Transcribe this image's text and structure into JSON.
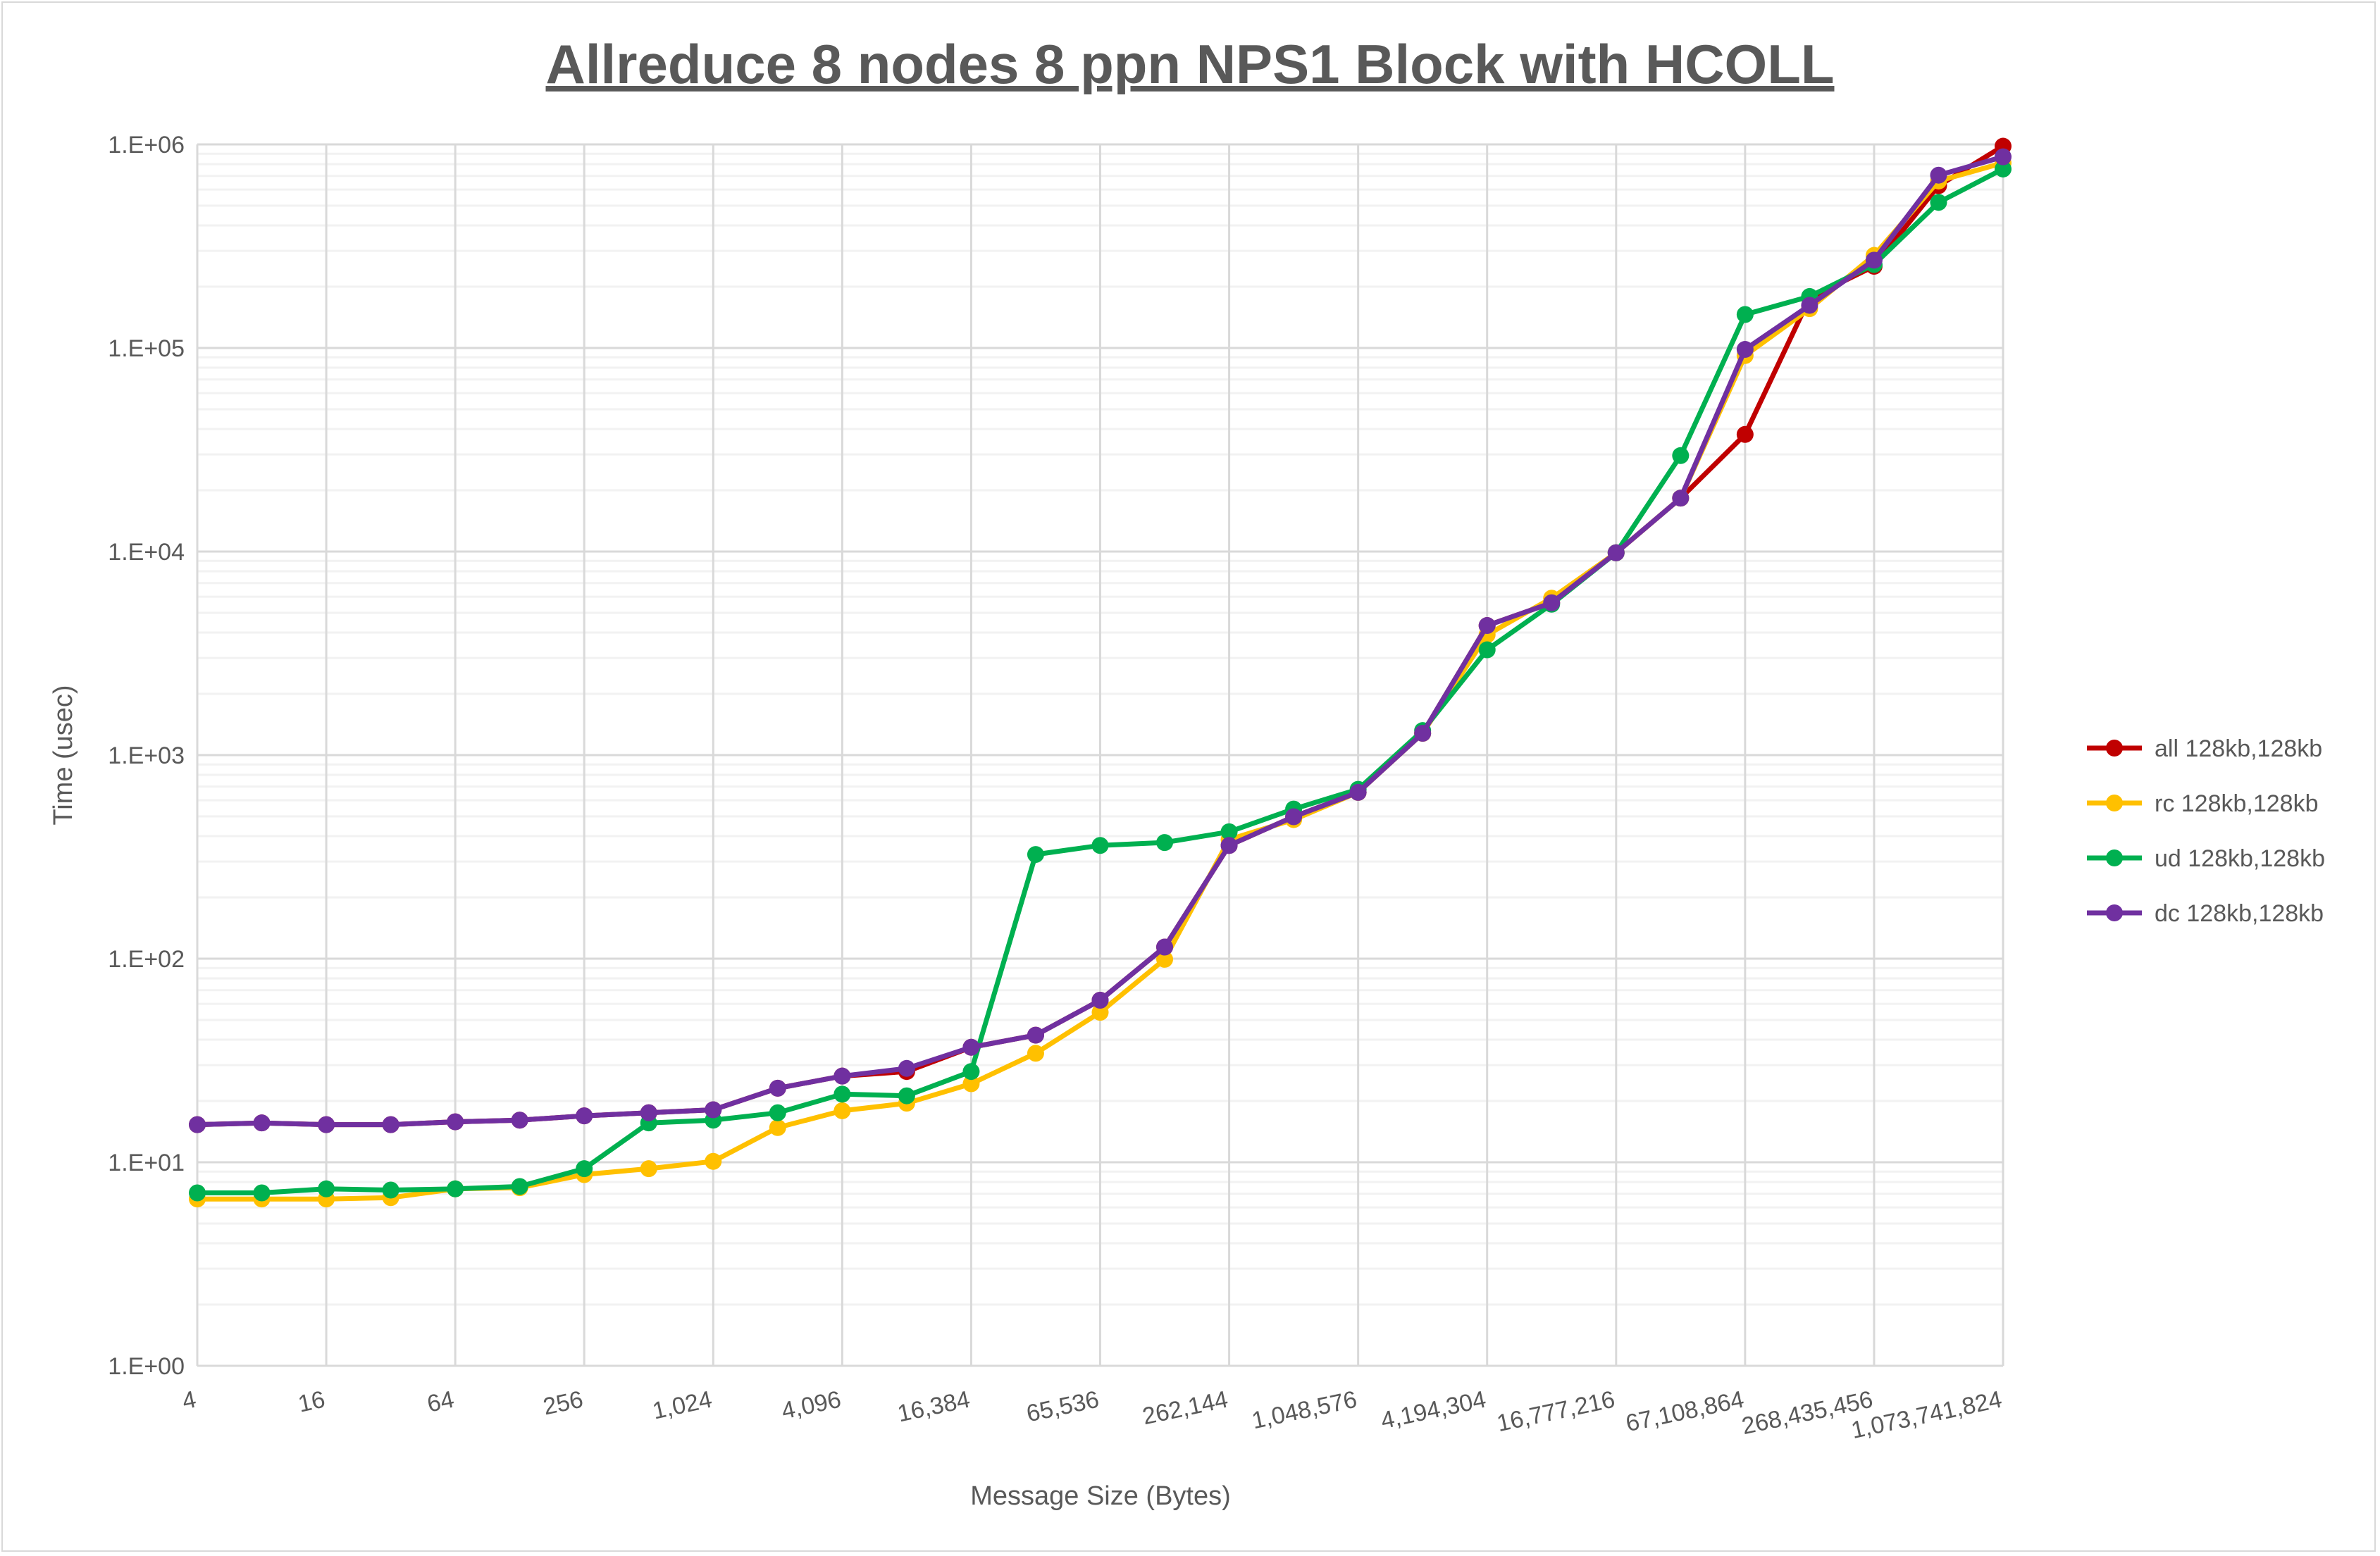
{
  "chart_data": {
    "type": "line",
    "title": "Allreduce 8 nodes 8 ppn NPS1 Block with HCOLL",
    "xlabel": "Message Size (Bytes)",
    "ylabel": "Time (usec)",
    "yscale": "log",
    "ylim": [
      1,
      1000000
    ],
    "y_ticks": [
      "1.E+00",
      "1.E+01",
      "1.E+02",
      "1.E+03",
      "1.E+04",
      "1.E+05",
      "1.E+06"
    ],
    "x": [
      4,
      8,
      16,
      32,
      64,
      128,
      256,
      512,
      1024,
      2048,
      4096,
      8192,
      16384,
      32768,
      65536,
      131072,
      262144,
      524288,
      1048576,
      2097152,
      4194304,
      8388608,
      16777216,
      33554432,
      67108864,
      134217728,
      268435456,
      536870912,
      1073741824
    ],
    "x_tick_labels": [
      "4",
      "16",
      "64",
      "256",
      "1,024",
      "4,096",
      "16,384",
      "65,536",
      "262,144",
      "1,048,576",
      "4,194,304",
      "16,777,216",
      "67,108,864",
      "268,435,456",
      "1,073,741,824"
    ],
    "grid": "major and minor",
    "legend_position": "right",
    "series": [
      {
        "name": "all 128kb,128kb",
        "color": "#C00000",
        "values": [
          15.3,
          15.6,
          15.3,
          15.3,
          15.8,
          16.1,
          16.9,
          17.5,
          18.1,
          23.1,
          26.5,
          27.9,
          36.7,
          42.1,
          62.5,
          114,
          360,
          498,
          656,
          1280,
          4330,
          5600,
          9860,
          18300,
          37600,
          176000,
          252000,
          627000,
          980000
        ]
      },
      {
        "name": "rc 128kb,128kb",
        "color": "#FFC000",
        "values": [
          6.6,
          6.6,
          6.6,
          6.7,
          7.4,
          7.5,
          8.7,
          9.3,
          10.1,
          14.8,
          17.9,
          19.5,
          24.3,
          34.3,
          54.5,
          99.3,
          385,
          482,
          656,
          1280,
          3900,
          5900,
          9860,
          18300,
          91800,
          156000,
          285000,
          661000,
          811000
        ]
      },
      {
        "name": "ud 128kb,128kb",
        "color": "#00B050",
        "values": [
          7.07,
          7.07,
          7.4,
          7.3,
          7.4,
          7.6,
          9.3,
          15.6,
          16.1,
          17.5,
          21.6,
          21.2,
          27.9,
          325,
          360,
          372,
          420,
          543,
          679,
          1320,
          3290,
          5510,
          9860,
          29600,
          146000,
          179000,
          257000,
          519000,
          757000
        ]
      },
      {
        "name": "dc 128kb,128kb",
        "color": "#7030A0",
        "values": [
          15.3,
          15.6,
          15.3,
          15.3,
          15.8,
          16.1,
          16.9,
          17.5,
          18.1,
          23.1,
          26.5,
          28.9,
          36.7,
          42.1,
          62.5,
          114,
          360,
          498,
          656,
          1280,
          4330,
          5600,
          9860,
          18300,
          98400,
          162000,
          270000,
          706000,
          869000
        ]
      }
    ]
  }
}
